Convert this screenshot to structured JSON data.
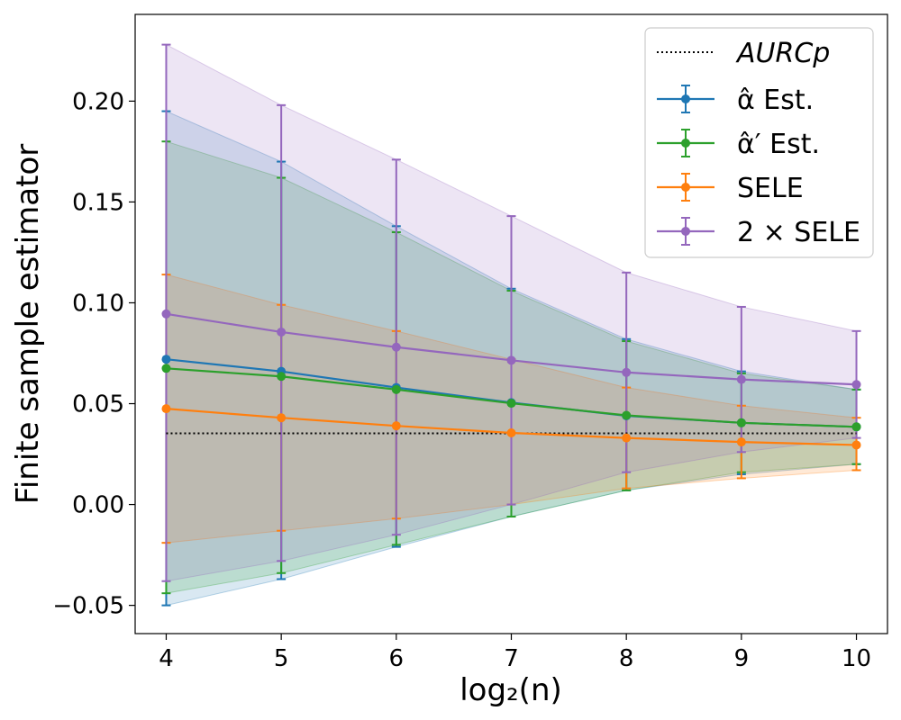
{
  "chart_data": {
    "type": "line",
    "xlabel": "log₂(n)",
    "ylabel": "Finite sample estimator",
    "xlim": [
      3.73,
      10.27
    ],
    "ylim": [
      -0.064,
      0.243
    ],
    "x": [
      4,
      5,
      6,
      7,
      8,
      9,
      10
    ],
    "xticks": [
      4,
      5,
      6,
      7,
      8,
      9,
      10
    ],
    "yticks": [
      -0.05,
      0.0,
      0.05,
      0.1,
      0.15,
      0.2
    ],
    "ytick_labels": [
      "−0.05",
      "0.00",
      "0.05",
      "0.10",
      "0.15",
      "0.20"
    ],
    "reference_line": {
      "name": "AURCp",
      "value": 0.0353,
      "color": "#000000",
      "style": "dotted"
    },
    "series": [
      {
        "name": "α̂ Est.",
        "color": "#1f77b4",
        "values": [
          0.072,
          0.066,
          0.058,
          0.0505,
          0.044,
          0.0405,
          0.0385
        ],
        "lower": [
          -0.05,
          -0.037,
          -0.021,
          -0.006,
          0.007,
          0.015,
          0.02
        ],
        "upper": [
          0.195,
          0.17,
          0.138,
          0.107,
          0.082,
          0.066,
          0.057
        ]
      },
      {
        "name": "α̂′ Est.",
        "color": "#2ca02c",
        "values": [
          0.0675,
          0.0635,
          0.057,
          0.0502,
          0.0442,
          0.0405,
          0.0385
        ],
        "lower": [
          -0.044,
          -0.034,
          -0.02,
          -0.006,
          0.007,
          0.016,
          0.02
        ],
        "upper": [
          0.18,
          0.162,
          0.135,
          0.106,
          0.081,
          0.065,
          0.057
        ]
      },
      {
        "name": "SELE",
        "color": "#ff7f0e",
        "values": [
          0.0475,
          0.043,
          0.039,
          0.0355,
          0.033,
          0.031,
          0.0295
        ],
        "lower": [
          -0.019,
          -0.013,
          -0.007,
          0.0,
          0.008,
          0.013,
          0.017
        ],
        "upper": [
          0.114,
          0.099,
          0.086,
          0.072,
          0.058,
          0.049,
          0.043
        ]
      },
      {
        "name": "2 × SELE",
        "color": "#9467bd",
        "values": [
          0.0945,
          0.0855,
          0.078,
          0.0715,
          0.0655,
          0.062,
          0.0595
        ],
        "lower": [
          -0.038,
          -0.028,
          -0.015,
          0.0,
          0.016,
          0.026,
          0.033
        ],
        "upper": [
          0.228,
          0.198,
          0.171,
          0.143,
          0.115,
          0.098,
          0.086
        ]
      }
    ]
  }
}
